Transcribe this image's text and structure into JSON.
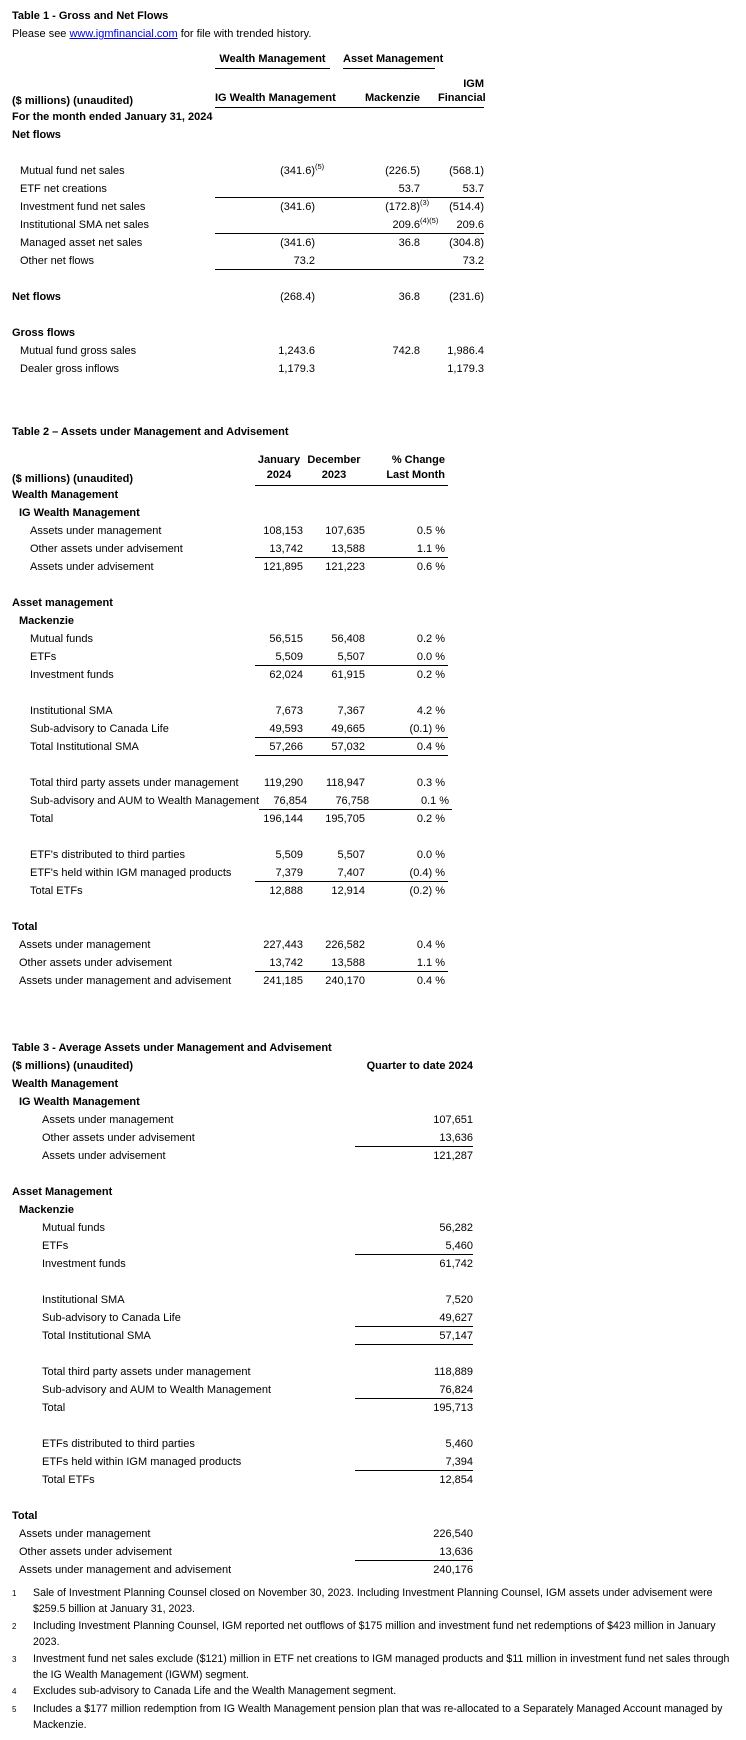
{
  "page": {
    "background_color": "#ffffff",
    "text_color": "#000000",
    "link_color": "#0000e0",
    "rule_color": "#000000"
  },
  "table1": {
    "title": "Table 1 - Gross and Net Flows",
    "subtitle": {
      "prefix": "Please see ",
      "link": "www.igmfinancial.com",
      "suffix": " for file with trended history."
    },
    "groups": [
      "Wealth Management",
      "Asset Management"
    ],
    "unit_label": "($ millions) (unaudited)",
    "columns": {
      "c1": "IG Wealth Management",
      "c2": "Mackenzie",
      "c3_line1": "IGM",
      "c3_line2": "Financial"
    },
    "period_label": "For the month ended January 31, 2024",
    "value_columns": 3,
    "rows": [
      {
        "type": "section",
        "indent": 0,
        "label": "Net flows"
      },
      {
        "type": "spacer"
      },
      {
        "type": "item",
        "indent": 1,
        "label": "Mutual fund net sales",
        "values": [
          "(341.6)",
          "(226.5)",
          "(568.1)"
        ],
        "sups": [
          "(5)",
          "",
          ""
        ]
      },
      {
        "type": "item",
        "indent": 1,
        "label": "ETF net creations",
        "values": [
          "",
          "53.7",
          "53.7"
        ],
        "rule": true
      },
      {
        "type": "item",
        "indent": 1,
        "label": "Investment fund net sales",
        "values": [
          "(341.6)",
          "(172.8)",
          "(514.4)"
        ],
        "sups": [
          "",
          "(3)",
          ""
        ]
      },
      {
        "type": "item",
        "indent": 1,
        "label": "Institutional SMA net sales",
        "values": [
          "",
          "209.6",
          "209.6"
        ],
        "sups": [
          "",
          "(4)(5)",
          ""
        ],
        "rule": true
      },
      {
        "type": "item",
        "indent": 1,
        "label": "Managed asset net sales",
        "values": [
          "(341.6)",
          "36.8",
          "(304.8)"
        ]
      },
      {
        "type": "item",
        "indent": 1,
        "label": "Other net flows",
        "values": [
          "73.2",
          "",
          "73.2"
        ],
        "rule": true
      },
      {
        "type": "spacer"
      },
      {
        "type": "total",
        "indent": 0,
        "label": "Net flows",
        "values": [
          "(268.4)",
          "36.8",
          "(231.6)"
        ]
      },
      {
        "type": "spacer"
      },
      {
        "type": "section",
        "indent": 0,
        "label": "Gross flows"
      },
      {
        "type": "item",
        "indent": 1,
        "label": "Mutual fund gross sales",
        "values": [
          "1,243.6",
          "742.8",
          "1,986.4"
        ]
      },
      {
        "type": "item",
        "indent": 1,
        "label": "Dealer gross inflows",
        "values": [
          "1,179.3",
          "",
          "1,179.3"
        ]
      }
    ]
  },
  "table2": {
    "title": "Table 2 – Assets under Management and Advisement",
    "unit_label": "($ millions) (unaudited)",
    "columns": {
      "c1_line1": "January",
      "c1_line2": "2024",
      "c2_line1": "December",
      "c2_line2": "2023",
      "c3_line1": "% Change",
      "c3_line2": "Last Month"
    },
    "value_columns": 3,
    "rows": [
      {
        "type": "section",
        "indent": 0,
        "label": "Wealth Management"
      },
      {
        "type": "section",
        "indent": 1,
        "label": "IG Wealth Management"
      },
      {
        "type": "item",
        "indent": 2,
        "label": "Assets under management",
        "values": [
          "108,153",
          "107,635",
          "0.5 %"
        ]
      },
      {
        "type": "item",
        "indent": 2,
        "label": "Other assets under advisement",
        "values": [
          "13,742",
          "13,588",
          "1.1 %"
        ],
        "rule": true
      },
      {
        "type": "item",
        "indent": 2,
        "label": "Assets under advisement",
        "values": [
          "121,895",
          "121,223",
          "0.6 %"
        ]
      },
      {
        "type": "spacer"
      },
      {
        "type": "section",
        "indent": 0,
        "label": "Asset management"
      },
      {
        "type": "section",
        "indent": 1,
        "label": "Mackenzie"
      },
      {
        "type": "item",
        "indent": 2,
        "label": "Mutual funds",
        "values": [
          "56,515",
          "56,408",
          "0.2 %"
        ]
      },
      {
        "type": "item",
        "indent": 2,
        "label": "ETFs",
        "values": [
          "5,509",
          "5,507",
          "0.0 %"
        ],
        "rule": true
      },
      {
        "type": "item",
        "indent": 2,
        "label": "Investment funds",
        "values": [
          "62,024",
          "61,915",
          "0.2 %"
        ]
      },
      {
        "type": "spacer"
      },
      {
        "type": "item",
        "indent": 2,
        "label": "Institutional SMA",
        "values": [
          "7,673",
          "7,367",
          "4.2 %"
        ]
      },
      {
        "type": "item",
        "indent": 2,
        "label": "Sub-advisory to Canada Life",
        "values": [
          "49,593",
          "49,665",
          "(0.1) %"
        ],
        "rule": true
      },
      {
        "type": "item",
        "indent": 2,
        "label": "Total Institutional SMA",
        "values": [
          "57,266",
          "57,032",
          "0.4 %"
        ],
        "rule": true
      },
      {
        "type": "spacer"
      },
      {
        "type": "item",
        "indent": 2,
        "label": "Total third party assets under management",
        "values": [
          "119,290",
          "118,947",
          "0.3 %"
        ]
      },
      {
        "type": "item",
        "indent": 2,
        "label": "Sub-advisory and AUM to Wealth Management",
        "values": [
          "76,854",
          "76,758",
          "0.1 %"
        ],
        "rule": true
      },
      {
        "type": "item",
        "indent": 2,
        "label": "Total",
        "values": [
          "196,144",
          "195,705",
          "0.2 %"
        ]
      },
      {
        "type": "spacer"
      },
      {
        "type": "item",
        "indent": 2,
        "label": "ETF's distributed to third parties",
        "values": [
          "5,509",
          "5,507",
          "0.0 %"
        ]
      },
      {
        "type": "item",
        "indent": 2,
        "label": "ETF's held within IGM managed products",
        "values": [
          "7,379",
          "7,407",
          "(0.4) %"
        ],
        "rule": true
      },
      {
        "type": "item",
        "indent": 2,
        "label": "Total ETFs",
        "values": [
          "12,888",
          "12,914",
          "(0.2) %"
        ]
      },
      {
        "type": "spacer"
      },
      {
        "type": "section",
        "indent": 0,
        "label": "Total"
      },
      {
        "type": "item",
        "indent": 1,
        "label": "Assets under management",
        "values": [
          "227,443",
          "226,582",
          "0.4 %"
        ]
      },
      {
        "type": "item",
        "indent": 1,
        "label": "Other assets under advisement",
        "values": [
          "13,742",
          "13,588",
          "1.1 %"
        ],
        "rule": true
      },
      {
        "type": "item",
        "indent": 1,
        "label": "Assets under management and advisement",
        "values": [
          "241,185",
          "240,170",
          "0.4 %"
        ]
      }
    ]
  },
  "table3": {
    "title": "Table 3 - Average Assets under Management and Advisement",
    "unit_label": "($ millions) (unaudited)",
    "column_header": "Quarter to date 2024",
    "value_columns": 1,
    "rows": [
      {
        "type": "section",
        "indent": 0,
        "label": "Wealth Management"
      },
      {
        "type": "section",
        "indent": 1,
        "label": "IG Wealth Management"
      },
      {
        "type": "item",
        "indent": 2,
        "label": "Assets under management",
        "values": [
          "107,651"
        ]
      },
      {
        "type": "item",
        "indent": 2,
        "label": "Other assets under advisement",
        "values": [
          "13,636"
        ],
        "rule": true
      },
      {
        "type": "item",
        "indent": 2,
        "label": "Assets under advisement",
        "values": [
          "121,287"
        ]
      },
      {
        "type": "spacer"
      },
      {
        "type": "section",
        "indent": 0,
        "label": "Asset Management"
      },
      {
        "type": "section",
        "indent": 1,
        "label": "Mackenzie"
      },
      {
        "type": "item",
        "indent": 2,
        "label": "Mutual funds",
        "values": [
          "56,282"
        ]
      },
      {
        "type": "item",
        "indent": 2,
        "label": "ETFs",
        "values": [
          "5,460"
        ],
        "rule": true
      },
      {
        "type": "item",
        "indent": 2,
        "label": "Investment funds",
        "values": [
          "61,742"
        ]
      },
      {
        "type": "spacer"
      },
      {
        "type": "item",
        "indent": 2,
        "label": "Institutional SMA",
        "values": [
          "7,520"
        ]
      },
      {
        "type": "item",
        "indent": 2,
        "label": "Sub-advisory to Canada Life",
        "values": [
          "49,627"
        ],
        "rule": true
      },
      {
        "type": "item",
        "indent": 2,
        "label": "Total Institutional SMA",
        "values": [
          "57,147"
        ],
        "rule": true
      },
      {
        "type": "spacer"
      },
      {
        "type": "item",
        "indent": 2,
        "label": "Total third party assets under management",
        "values": [
          "118,889"
        ]
      },
      {
        "type": "item",
        "indent": 2,
        "label": "Sub-advisory and AUM to Wealth Management",
        "values": [
          "76,824"
        ],
        "rule": true
      },
      {
        "type": "item",
        "indent": 2,
        "label": "Total",
        "values": [
          "195,713"
        ]
      },
      {
        "type": "spacer"
      },
      {
        "type": "item",
        "indent": 2,
        "label": "ETFs distributed to third parties",
        "values": [
          "5,460"
        ]
      },
      {
        "type": "item",
        "indent": 2,
        "label": "ETFs held within IGM managed products",
        "values": [
          "7,394"
        ],
        "rule": true
      },
      {
        "type": "item",
        "indent": 2,
        "label": "Total ETFs",
        "values": [
          "12,854"
        ]
      },
      {
        "type": "spacer"
      },
      {
        "type": "section",
        "indent": 0,
        "label": "Total"
      },
      {
        "type": "item",
        "indent": 1,
        "label": "Assets under management",
        "values": [
          "226,540"
        ]
      },
      {
        "type": "item",
        "indent": 1,
        "label": "Other assets under advisement",
        "values": [
          "13,636"
        ],
        "rule": true
      },
      {
        "type": "item",
        "indent": 1,
        "label": "Assets under management and advisement",
        "values": [
          "240,176"
        ]
      }
    ]
  },
  "footnotes": [
    {
      "num": "1",
      "text": "Sale of Investment Planning Counsel closed on November 30, 2023. Including Investment Planning Counsel, IGM assets under advisement were $259.5 billion at January 31, 2023."
    },
    {
      "num": "2",
      "text": "Including Investment Planning Counsel, IGM reported net outflows of $175 million and investment fund net redemptions of $423 million in January 2023."
    },
    {
      "num": "3",
      "text": "Investment fund net sales exclude ($121) million in ETF net creations to IGM managed products and $11 million in investment fund net sales through the IG Wealth Management (IGWM) segment."
    },
    {
      "num": "4",
      "text": "Excludes sub-advisory to Canada Life and the Wealth Management segment."
    },
    {
      "num": "5",
      "text": "Includes a $177 million redemption from IG Wealth Management pension plan that was re-allocated to a Separately Managed Account managed by Mackenzie."
    }
  ]
}
